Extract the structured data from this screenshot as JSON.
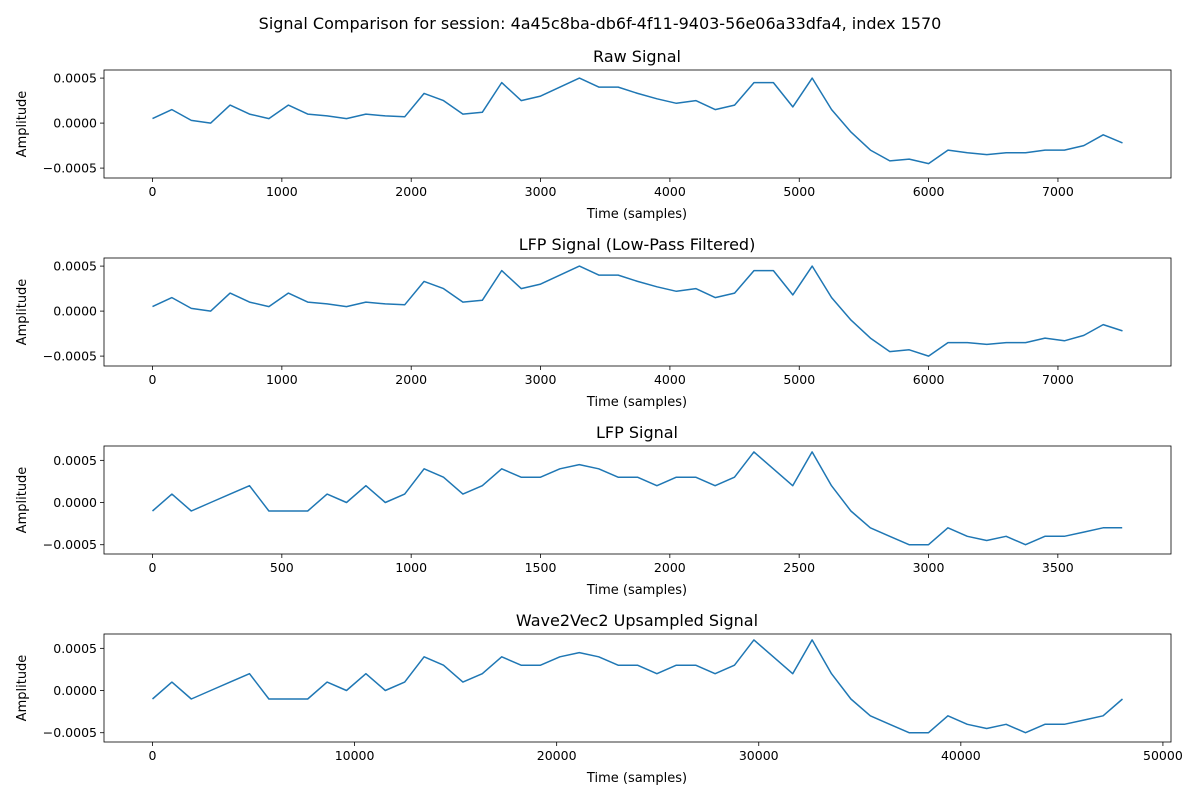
{
  "figure": {
    "suptitle": "Signal Comparison for session: 4a45c8ba-db6f-4f11-9403-56e06a33dfa4, index 1570",
    "line_color": "#1f77b4"
  },
  "chart_data": [
    {
      "type": "line",
      "title": "Raw Signal",
      "xlabel": "Time (samples)",
      "ylabel": "Amplitude",
      "xlim": [
        -375,
        7874
      ],
      "ylim": [
        -0.00061,
        0.00059
      ],
      "xticks": [
        0,
        1000,
        2000,
        3000,
        4000,
        5000,
        6000,
        7000
      ],
      "xtick_labels": [
        "0",
        "1000",
        "2000",
        "3000",
        "4000",
        "5000",
        "6000",
        "7000"
      ],
      "yticks": [
        -0.0005,
        0.0,
        0.0005
      ],
      "ytick_labels": [
        "−0.0005",
        "0.0000",
        "0.0005"
      ],
      "series": [
        {
          "x": [
            0,
            150,
            300,
            450,
            600,
            750,
            900,
            1050,
            1200,
            1350,
            1500,
            1650,
            1800,
            1950,
            2100,
            2250,
            2400,
            2550,
            2700,
            2850,
            3000,
            3150,
            3300,
            3450,
            3600,
            3750,
            3900,
            4050,
            4200,
            4350,
            4500,
            4650,
            4800,
            4950,
            5100,
            5250,
            5400,
            5550,
            5700,
            5850,
            6000,
            6150,
            6300,
            6450,
            6600,
            6750,
            6900,
            7050,
            7200,
            7350,
            7499
          ],
          "y": [
            5e-05,
            0.00015,
            3e-05,
            0.0,
            0.0002,
            0.0001,
            5e-05,
            0.0002,
            0.0001,
            8e-05,
            5e-05,
            0.0001,
            8e-05,
            7e-05,
            0.00033,
            0.00025,
            0.0001,
            0.00012,
            0.00045,
            0.00025,
            0.0003,
            0.0004,
            0.0005,
            0.0004,
            0.0004,
            0.00033,
            0.00027,
            0.00022,
            0.00025,
            0.00015,
            0.0002,
            0.00045,
            0.00045,
            0.00018,
            0.0005,
            0.00015,
            -0.0001,
            -0.0003,
            -0.00042,
            -0.0004,
            -0.00045,
            -0.0003,
            -0.00033,
            -0.00035,
            -0.00033,
            -0.00033,
            -0.0003,
            -0.0003,
            -0.00025,
            -0.00013,
            -0.00022
          ]
        }
      ]
    },
    {
      "type": "line",
      "title": "LFP Signal (Low-Pass Filtered)",
      "xlabel": "Time (samples)",
      "ylabel": "Amplitude",
      "xlim": [
        -375,
        7874
      ],
      "ylim": [
        -0.00061,
        0.00059
      ],
      "xticks": [
        0,
        1000,
        2000,
        3000,
        4000,
        5000,
        6000,
        7000
      ],
      "xtick_labels": [
        "0",
        "1000",
        "2000",
        "3000",
        "4000",
        "5000",
        "6000",
        "7000"
      ],
      "yticks": [
        -0.0005,
        0.0,
        0.0005
      ],
      "ytick_labels": [
        "−0.0005",
        "0.0000",
        "0.0005"
      ],
      "series": [
        {
          "x": [
            0,
            150,
            300,
            450,
            600,
            750,
            900,
            1050,
            1200,
            1350,
            1500,
            1650,
            1800,
            1950,
            2100,
            2250,
            2400,
            2550,
            2700,
            2850,
            3000,
            3150,
            3300,
            3450,
            3600,
            3750,
            3900,
            4050,
            4200,
            4350,
            4500,
            4650,
            4800,
            4950,
            5100,
            5250,
            5400,
            5550,
            5700,
            5850,
            6000,
            6150,
            6300,
            6450,
            6600,
            6750,
            6900,
            7050,
            7200,
            7350,
            7499
          ],
          "y": [
            5e-05,
            0.00015,
            3e-05,
            0.0,
            0.0002,
            0.0001,
            5e-05,
            0.0002,
            0.0001,
            8e-05,
            5e-05,
            0.0001,
            8e-05,
            7e-05,
            0.00033,
            0.00025,
            0.0001,
            0.00012,
            0.00045,
            0.00025,
            0.0003,
            0.0004,
            0.0005,
            0.0004,
            0.0004,
            0.00033,
            0.00027,
            0.00022,
            0.00025,
            0.00015,
            0.0002,
            0.00045,
            0.00045,
            0.00018,
            0.0005,
            0.00015,
            -0.0001,
            -0.0003,
            -0.00045,
            -0.00043,
            -0.0005,
            -0.00035,
            -0.00035,
            -0.00037,
            -0.00035,
            -0.00035,
            -0.0003,
            -0.00033,
            -0.00027,
            -0.00015,
            -0.00022
          ]
        }
      ]
    },
    {
      "type": "line",
      "title": "LFP Signal",
      "xlabel": "Time (samples)",
      "ylabel": "Amplitude",
      "xlim": [
        -187.5,
        3937.5
      ],
      "ylim": [
        -0.00061,
        0.00067
      ],
      "xticks": [
        0,
        500,
        1000,
        1500,
        2000,
        2500,
        3000,
        3500
      ],
      "xtick_labels": [
        "0",
        "500",
        "1000",
        "1500",
        "2000",
        "2500",
        "3000",
        "3500"
      ],
      "yticks": [
        -0.0005,
        0.0,
        0.0005
      ],
      "ytick_labels": [
        "−0.0005",
        "0.0000",
        "0.0005"
      ],
      "series": [
        {
          "x": [
            0,
            75,
            150,
            225,
            300,
            375,
            450,
            525,
            600,
            675,
            750,
            825,
            900,
            975,
            1050,
            1125,
            1200,
            1275,
            1350,
            1425,
            1500,
            1575,
            1650,
            1725,
            1800,
            1875,
            1950,
            2025,
            2100,
            2175,
            2250,
            2325,
            2400,
            2475,
            2550,
            2625,
            2700,
            2775,
            2850,
            2925,
            3000,
            3075,
            3150,
            3225,
            3300,
            3375,
            3450,
            3525,
            3600,
            3675,
            3749
          ],
          "y": [
            -0.0001,
            0.0001,
            -0.0001,
            0.0,
            0.0001,
            0.0002,
            -0.0001,
            -0.0001,
            -0.0001,
            0.0001,
            0.0,
            0.0002,
            0.0,
            0.0001,
            0.0004,
            0.0003,
            0.0001,
            0.0002,
            0.0004,
            0.0003,
            0.0003,
            0.0004,
            0.00045,
            0.0004,
            0.0003,
            0.0003,
            0.0002,
            0.0003,
            0.0003,
            0.0002,
            0.0003,
            0.0006,
            0.0004,
            0.0002,
            0.0006,
            0.0002,
            -0.0001,
            -0.0003,
            -0.0004,
            -0.0005,
            -0.0005,
            -0.0003,
            -0.0004,
            -0.00045,
            -0.0004,
            -0.0005,
            -0.0004,
            -0.0004,
            -0.00035,
            -0.0003,
            -0.0003
          ]
        }
      ]
    },
    {
      "type": "line",
      "title": "Wave2Vec2 Upsampled Signal",
      "xlabel": "Time (samples)",
      "ylabel": "Amplitude",
      "xlim": [
        -2400,
        50400
      ],
      "ylim": [
        -0.00061,
        0.00067
      ],
      "xticks": [
        0,
        10000,
        20000,
        30000,
        40000,
        50000
      ],
      "xtick_labels": [
        "0",
        "10000",
        "20000",
        "30000",
        "40000",
        "50000"
      ],
      "yticks": [
        -0.0005,
        0.0,
        0.0005
      ],
      "ytick_labels": [
        "−0.0005",
        "0.0000",
        "0.0005"
      ],
      "series": [
        {
          "x": [
            0,
            960,
            1920,
            2880,
            3840,
            4800,
            5760,
            6720,
            7680,
            8640,
            9600,
            10560,
            11520,
            12480,
            13440,
            14400,
            15360,
            16320,
            17280,
            18240,
            19200,
            20160,
            21120,
            22080,
            23040,
            24000,
            24960,
            25920,
            26880,
            27840,
            28800,
            29760,
            30720,
            31680,
            32640,
            33600,
            34560,
            35520,
            36480,
            37440,
            38400,
            39360,
            40320,
            41280,
            42240,
            43200,
            44160,
            45120,
            46080,
            47040,
            48000
          ],
          "y": [
            -0.0001,
            0.0001,
            -0.0001,
            0.0,
            0.0001,
            0.0002,
            -0.0001,
            -0.0001,
            -0.0001,
            0.0001,
            0.0,
            0.0002,
            0.0,
            0.0001,
            0.0004,
            0.0003,
            0.0001,
            0.0002,
            0.0004,
            0.0003,
            0.0003,
            0.0004,
            0.00045,
            0.0004,
            0.0003,
            0.0003,
            0.0002,
            0.0003,
            0.0003,
            0.0002,
            0.0003,
            0.0006,
            0.0004,
            0.0002,
            0.0006,
            0.0002,
            -0.0001,
            -0.0003,
            -0.0004,
            -0.0005,
            -0.0005,
            -0.0003,
            -0.0004,
            -0.00045,
            -0.0004,
            -0.0005,
            -0.0004,
            -0.0004,
            -0.00035,
            -0.0003,
            -0.0001
          ]
        }
      ]
    }
  ]
}
